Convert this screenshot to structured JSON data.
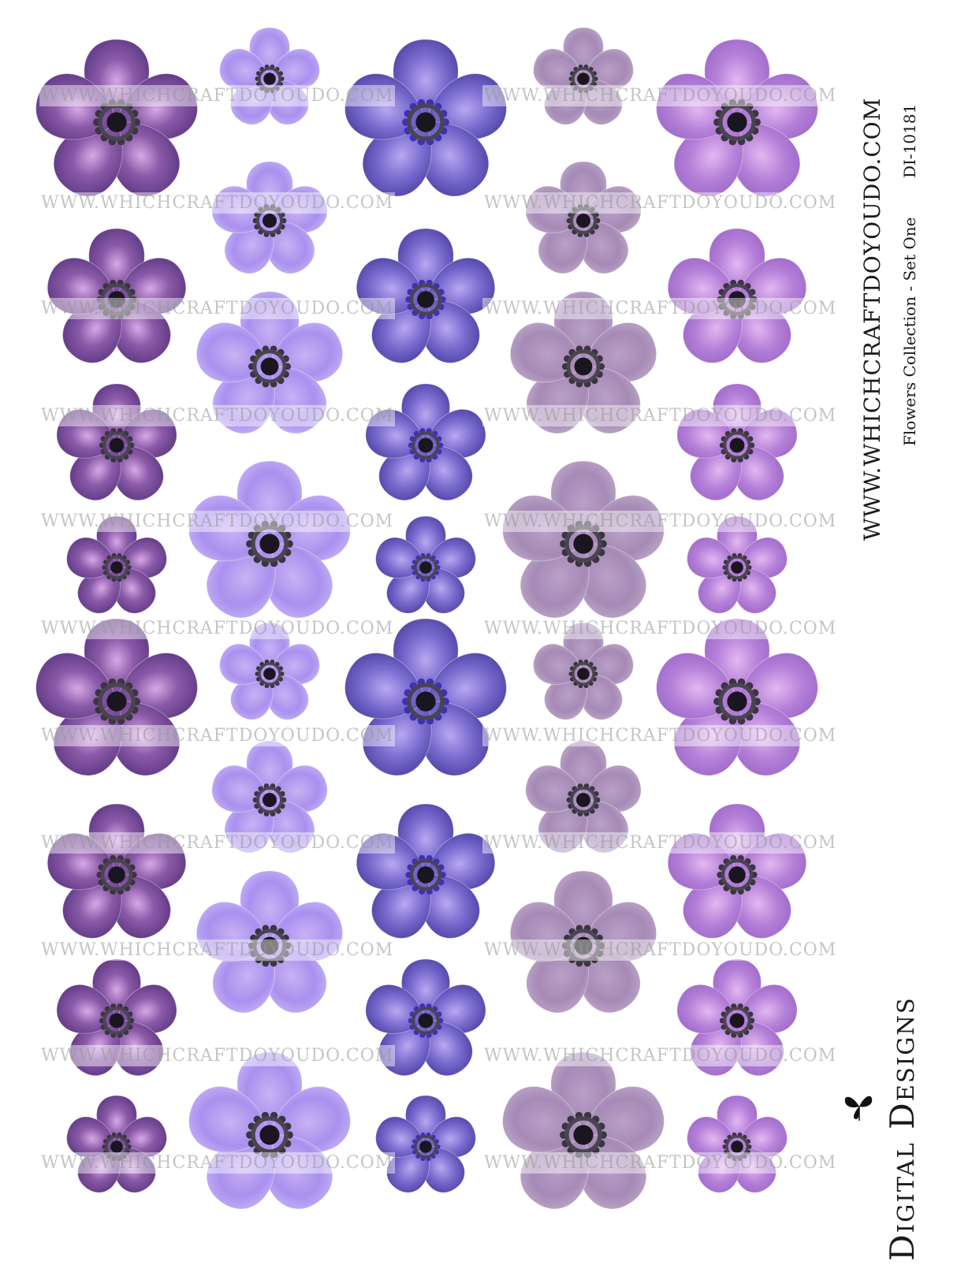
{
  "sheet": {
    "watermark_text": "WWW.WHICHCRAFTDOYOUDO.COM",
    "side_url": "WWW.WHICHCRAFTDOYOUDO.COM",
    "collection_title": "Flowers Collection - Set One",
    "product_code": "DI-10181",
    "brand_name": "Digital Designs",
    "logo_icon": "butterfly-icon",
    "palette": {
      "deep_purple": "#6a3f8f",
      "lavender": "#a98de8",
      "indigo": "#4e46a8",
      "mauve": "#a78bb5",
      "orchid": "#b57fd6",
      "center": "#1e1a24"
    }
  }
}
